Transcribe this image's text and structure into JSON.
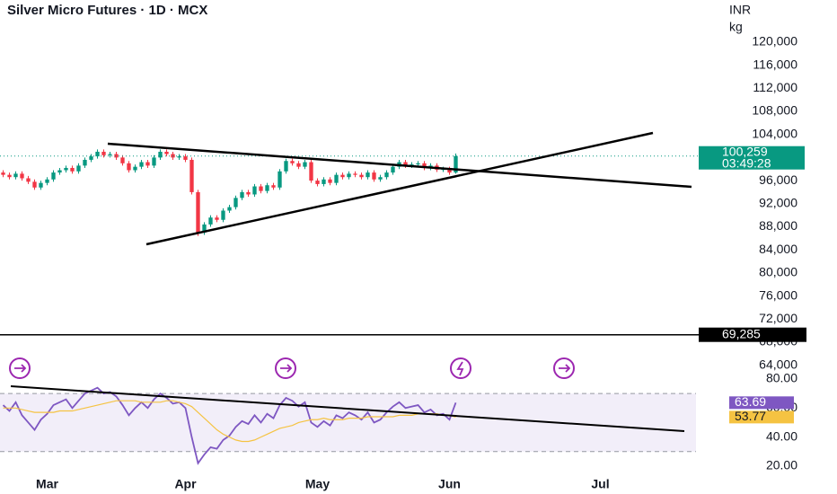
{
  "chart_data": [
    {
      "type": "candlestick",
      "title": "Silver Micro Futures · 1D · MCX",
      "currency": "INR",
      "unit": "kg",
      "up_color": "#089981",
      "down_color": "#f23645",
      "open": [
        97400,
        97000,
        96600,
        97200,
        96400,
        95800,
        94800,
        95600,
        96200,
        97400,
        97800,
        98200,
        97600,
        98600,
        99600,
        100200,
        101000,
        100400,
        100600,
        100000,
        99000,
        97800,
        98400,
        99200,
        98600,
        100000,
        101000,
        100600,
        100000,
        100200,
        99600,
        94000,
        87000,
        88400,
        89600,
        89200,
        90800,
        91400,
        93000,
        94000,
        93600,
        95000,
        94200,
        95200,
        94800,
        97600,
        99400,
        99000,
        98400,
        99200,
        96000,
        95400,
        96200,
        95600,
        97000,
        96600,
        97200,
        97000,
        96600,
        97400,
        96200,
        96600,
        97400,
        98400,
        99200,
        98600,
        98800,
        99000,
        98200,
        98600,
        97900,
        98000,
        97400
      ],
      "high": [
        97800,
        97400,
        97600,
        97600,
        96800,
        96200,
        96000,
        96600,
        97800,
        98200,
        98600,
        98600,
        99000,
        100000,
        100600,
        101400,
        101400,
        101000,
        101000,
        100400,
        99400,
        98800,
        99600,
        99600,
        100400,
        101400,
        101400,
        101000,
        100600,
        100600,
        100000,
        94400,
        88800,
        90000,
        90000,
        91200,
        91800,
        93400,
        94400,
        94400,
        95400,
        95400,
        95600,
        95600,
        98000,
        99800,
        99800,
        99400,
        99600,
        99600,
        96400,
        96600,
        96600,
        97400,
        97400,
        97600,
        97600,
        97400,
        97800,
        97800,
        97000,
        97800,
        98800,
        99600,
        99600,
        99200,
        99400,
        99400,
        99000,
        99000,
        98400,
        98400,
        100700
      ],
      "low": [
        96600,
        96200,
        96200,
        96000,
        95400,
        94400,
        94400,
        95200,
        95800,
        97000,
        97400,
        97200,
        97200,
        98200,
        99200,
        99800,
        100000,
        100000,
        99600,
        98600,
        97400,
        97400,
        98000,
        98200,
        98200,
        99600,
        100200,
        99600,
        99600,
        99200,
        93600,
        86400,
        86600,
        88000,
        88800,
        88800,
        90400,
        91000,
        92600,
        93200,
        93200,
        93800,
        93800,
        94400,
        94400,
        97200,
        98600,
        98000,
        98000,
        95600,
        95000,
        95000,
        95200,
        95200,
        96200,
        96200,
        96600,
        96200,
        96200,
        95800,
        95800,
        96200,
        97000,
        98000,
        98200,
        98200,
        98400,
        97800,
        97800,
        97500,
        97500,
        97000,
        97200
      ],
      "close": [
        97000,
        96600,
        97200,
        96400,
        95800,
        94800,
        95600,
        96200,
        97400,
        97800,
        98200,
        97600,
        98600,
        99600,
        100200,
        101000,
        100400,
        100600,
        100000,
        99000,
        97800,
        98400,
        99200,
        98600,
        100000,
        101000,
        100600,
        100000,
        100200,
        99600,
        94000,
        87000,
        88400,
        89600,
        89200,
        90800,
        91400,
        93000,
        94000,
        93600,
        95000,
        94200,
        95200,
        94800,
        97600,
        99400,
        99000,
        98400,
        99200,
        96000,
        95400,
        96200,
        95600,
        97000,
        96600,
        97200,
        97000,
        96600,
        97400,
        96200,
        96600,
        97400,
        98400,
        99200,
        98600,
        98800,
        99000,
        98200,
        98600,
        97900,
        98000,
        97400,
        100259
      ],
      "last_price_label": "100,259",
      "countdown": "03:49:28",
      "horizontal_line": {
        "value": 69285,
        "label": "69,285"
      },
      "ylim": [
        62700,
        127300
      ],
      "yticks": [
        {
          "value": 120000,
          "label": "120,000"
        },
        {
          "value": 116000,
          "label": "116,000"
        },
        {
          "value": 112000,
          "label": "112,000"
        },
        {
          "value": 108000,
          "label": "108,000"
        },
        {
          "value": 104000,
          "label": "104,000"
        },
        {
          "value": 100000,
          "label": "100,000"
        },
        {
          "value": 96000,
          "label": "96,000"
        },
        {
          "value": 92000,
          "label": "92,000"
        },
        {
          "value": 88000,
          "label": "88,000"
        },
        {
          "value": 84000,
          "label": "84,000"
        },
        {
          "value": 80000,
          "label": "80,000"
        },
        {
          "value": 76000,
          "label": "76,000"
        },
        {
          "value": 72000,
          "label": "72,000"
        },
        {
          "value": 68000,
          "label": "68,000"
        },
        {
          "value": 64000,
          "label": "64,000"
        }
      ],
      "xlim": [
        -0.5,
        109.5
      ],
      "xticks": [
        {
          "value": 7,
          "label": "Mar"
        },
        {
          "value": 29,
          "label": "Apr"
        },
        {
          "value": 50,
          "label": "May"
        },
        {
          "value": 71,
          "label": "Jun"
        },
        {
          "value": 95,
          "label": "Jul"
        }
      ]
    },
    {
      "type": "line",
      "series": [
        {
          "color": "#7e57c2",
          "values": [
            62,
            58,
            64,
            55,
            50,
            45,
            52,
            56,
            62,
            64,
            66,
            60,
            65,
            70,
            72,
            74,
            70,
            71,
            68,
            62,
            55,
            60,
            64,
            60,
            66,
            70,
            67,
            63,
            64,
            60,
            40,
            22,
            28,
            33,
            32,
            38,
            41,
            47,
            51,
            49,
            55,
            50,
            56,
            53,
            62,
            67,
            65,
            61,
            64,
            50,
            47,
            51,
            48,
            55,
            53,
            57,
            55,
            52,
            57,
            50,
            52,
            57,
            61,
            64,
            60,
            61,
            62,
            57,
            59,
            55,
            56,
            52,
            63.69
          ]
        },
        {
          "color": "#f5c342",
          "values": [
            60,
            60,
            60,
            59,
            58,
            57,
            57,
            57,
            57,
            58,
            58,
            58,
            59,
            60,
            61,
            62,
            63,
            64,
            65,
            65,
            65,
            65,
            64,
            64,
            64,
            64,
            65,
            65,
            64,
            63,
            61,
            57,
            53,
            49,
            45,
            42,
            40,
            38,
            37,
            37,
            38,
            40,
            42,
            44,
            46,
            47,
            48,
            50,
            51,
            52,
            52,
            53,
            52,
            52,
            52,
            53,
            53,
            53,
            54,
            54,
            54,
            54,
            54,
            55,
            55,
            55,
            56,
            56,
            56,
            56,
            55,
            55,
            53.77
          ]
        }
      ],
      "band": [
        30,
        70
      ],
      "ylim": [
        7,
        84.3
      ],
      "yticks": [
        {
          "value": 80,
          "label": "80.00"
        },
        {
          "value": 60,
          "label": "60.00"
        },
        {
          "value": 40,
          "label": "40.00"
        },
        {
          "value": 20,
          "label": "20.00"
        }
      ]
    }
  ]
}
